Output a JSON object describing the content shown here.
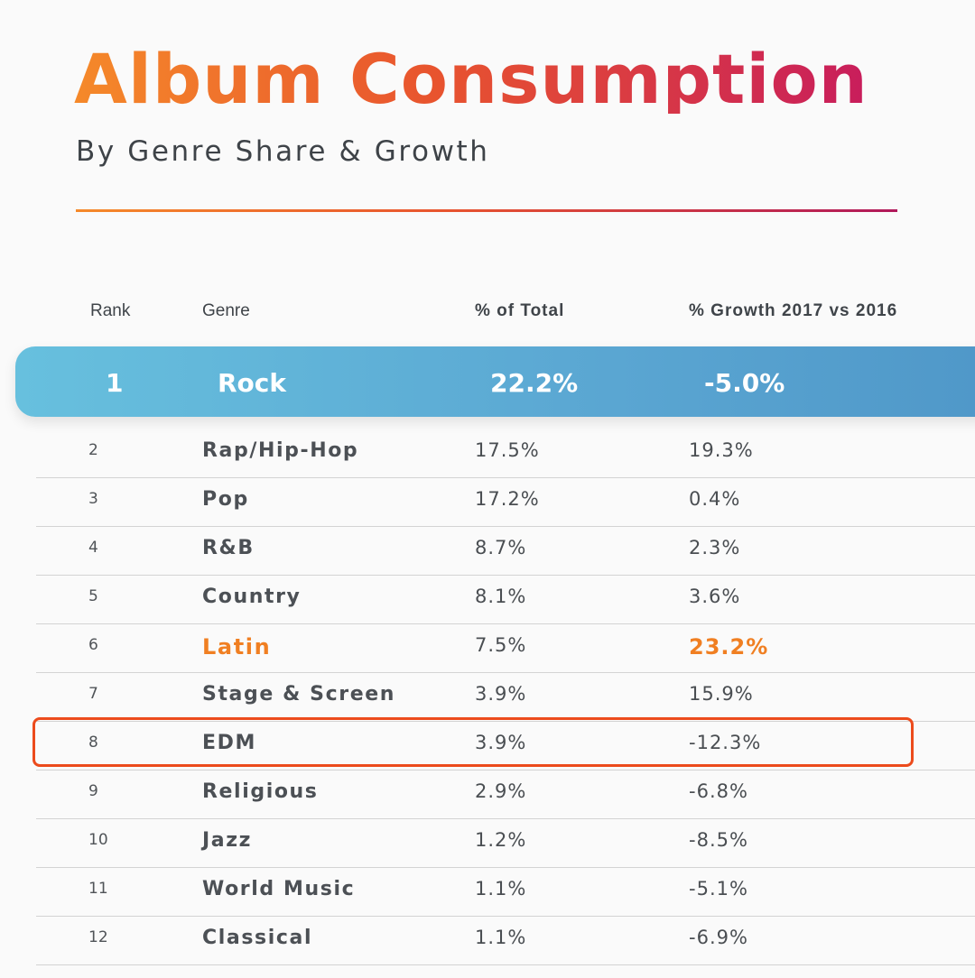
{
  "colors": {
    "title_start": "#f5892a",
    "title_end": "#c81d5c",
    "highlight_row": "#5aa6d2",
    "accent": "#f07f22",
    "box_outline": "#ec4b1c"
  },
  "chart_data": {
    "type": "table",
    "title": "Album Consumption",
    "subtitle": "By Genre Share & Growth",
    "columns": [
      "Rank",
      "Genre",
      "% of Total",
      "% Growth 2017 vs 2016"
    ],
    "rows": [
      {
        "rank": "1",
        "genre": "Rock",
        "share": "22.2%",
        "growth": "-5.0%",
        "style": "highlight"
      },
      {
        "rank": "2",
        "genre": "Rap/Hip-Hop",
        "share": "17.5%",
        "growth": "19.3%",
        "style": ""
      },
      {
        "rank": "3",
        "genre": "Pop",
        "share": "17.2%",
        "growth": "0.4%",
        "style": ""
      },
      {
        "rank": "4",
        "genre": "R&B",
        "share": "8.7%",
        "growth": "2.3%",
        "style": ""
      },
      {
        "rank": "5",
        "genre": "Country",
        "share": "8.1%",
        "growth": "3.6%",
        "style": ""
      },
      {
        "rank": "6",
        "genre": "Latin",
        "share": "7.5%",
        "growth": "23.2%",
        "style": "accent"
      },
      {
        "rank": "7",
        "genre": "Stage & Screen",
        "share": "3.9%",
        "growth": "15.9%",
        "style": ""
      },
      {
        "rank": "8",
        "genre": "EDM",
        "share": "3.9%",
        "growth": "-12.3%",
        "style": "boxed"
      },
      {
        "rank": "9",
        "genre": "Religious",
        "share": "2.9%",
        "growth": "-6.8%",
        "style": ""
      },
      {
        "rank": "10",
        "genre": "Jazz",
        "share": "1.2%",
        "growth": "-8.5%",
        "style": ""
      },
      {
        "rank": "11",
        "genre": "World Music",
        "share": "1.1%",
        "growth": "-5.1%",
        "style": ""
      },
      {
        "rank": "12",
        "genre": "Classical",
        "share": "1.1%",
        "growth": "-6.9%",
        "style": ""
      }
    ]
  }
}
